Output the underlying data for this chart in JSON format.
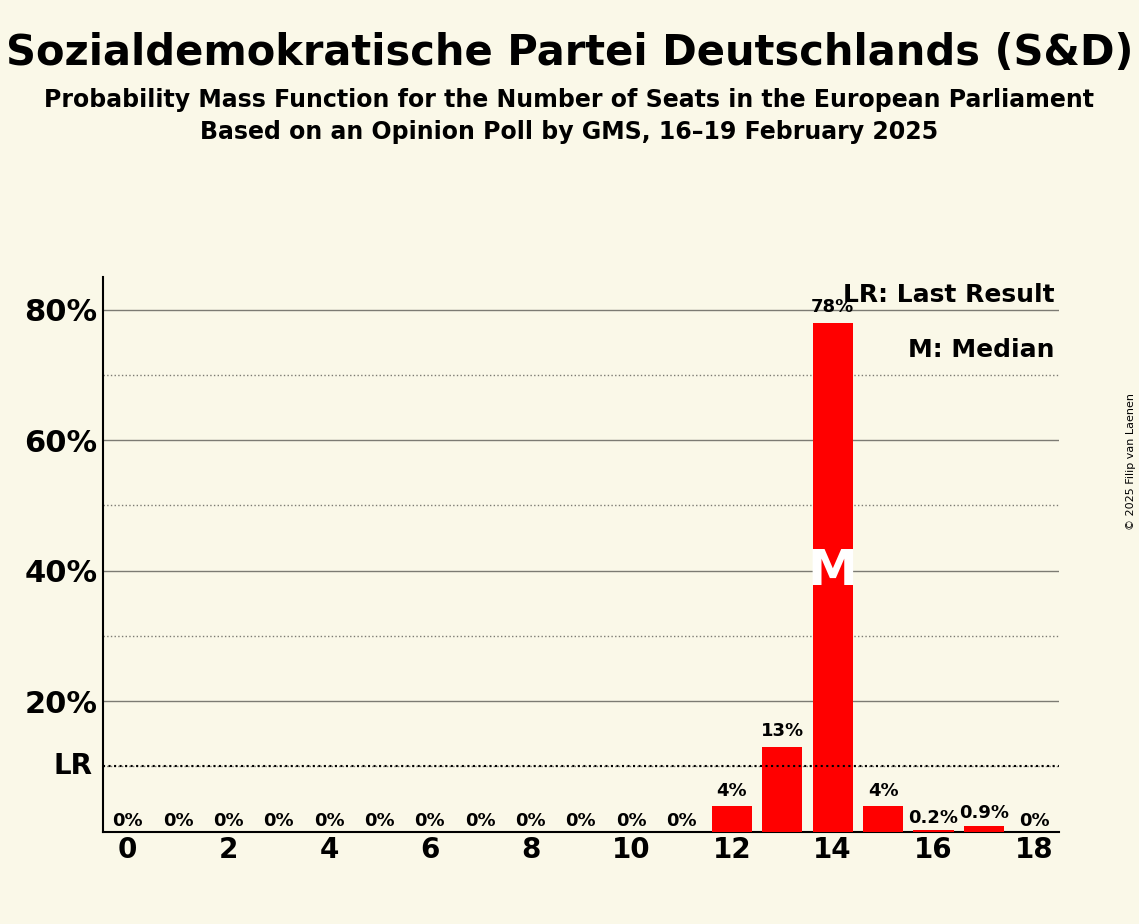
{
  "title": "Sozialdemokratische Partei Deutschlands (S&D)",
  "subtitle1": "Probability Mass Function for the Number of Seats in the European Parliament",
  "subtitle2": "Based on an Opinion Poll by GMS, 16–19 February 2025",
  "copyright": "© 2025 Filip van Laenen",
  "background_color": "#faf8e8",
  "bar_color": "#ff0000",
  "seats": [
    0,
    1,
    2,
    3,
    4,
    5,
    6,
    7,
    8,
    9,
    10,
    11,
    12,
    13,
    14,
    15,
    16,
    17,
    18
  ],
  "probabilities": [
    0.0,
    0.0,
    0.0,
    0.0,
    0.0,
    0.0,
    0.0,
    0.0,
    0.0,
    0.0,
    0.0,
    0.0,
    4.0,
    13.0,
    78.0,
    4.0,
    0.2,
    0.9,
    0.0
  ],
  "labels": [
    "0%",
    "0%",
    "0%",
    "0%",
    "0%",
    "0%",
    "0%",
    "0%",
    "0%",
    "0%",
    "0%",
    "0%",
    "4%",
    "13%",
    "78%",
    "4%",
    "0.2%",
    "0.9%",
    "0%"
  ],
  "lr_value": 10.0,
  "lr_label": "LR",
  "median_seat": 14,
  "median_label": "M",
  "ylim_max": 85,
  "xlim": [
    -0.5,
    18.5
  ],
  "xticks": [
    0,
    2,
    4,
    6,
    8,
    10,
    12,
    14,
    16,
    18
  ],
  "ytick_positions": [
    20,
    40,
    60,
    80
  ],
  "ytick_labels": [
    "20%",
    "40%",
    "60%",
    "80%"
  ],
  "grid_solid": [
    20,
    40,
    60,
    80
  ],
  "grid_dotted": [
    10,
    30,
    50,
    70
  ],
  "legend_text1": "LR: Last Result",
  "legend_text2": "M: Median",
  "title_fontsize": 30,
  "subtitle_fontsize": 17,
  "bar_label_fontsize": 13,
  "axis_tick_fontsize": 20,
  "ytick_fontsize": 22,
  "legend_fontsize": 18,
  "lr_fontsize": 20,
  "median_fontsize": 36
}
